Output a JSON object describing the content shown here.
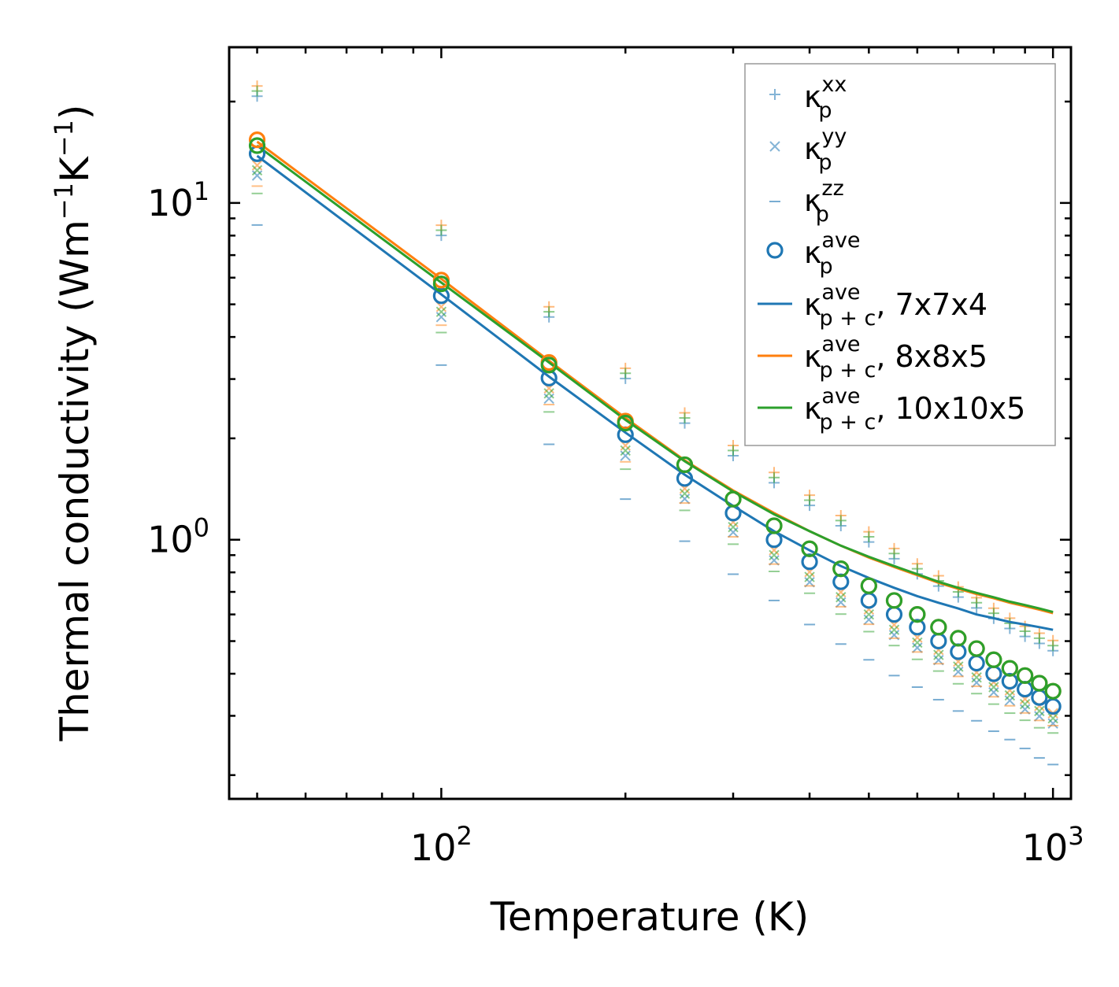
{
  "chart_data": {
    "type": "scatter",
    "xscale": "log",
    "yscale": "log",
    "xlim": [
      45,
      1070
    ],
    "ylim": [
      0.17,
      29
    ],
    "xlabel": "Temperature (K)",
    "ylabel_text": "Thermal conductivity (Wm",
    "ylabel_exp1": "−1",
    "ylabel_mid": "K",
    "ylabel_exp2": "−1",
    "ylabel_close": ")",
    "x_ticks": [
      {
        "value": 100,
        "base": "10",
        "exp": "2"
      },
      {
        "value": 1000,
        "base": "10",
        "exp": "3"
      }
    ],
    "y_ticks": [
      {
        "value": 1,
        "base": "10",
        "exp": "0"
      },
      {
        "value": 10,
        "base": "10",
        "exp": "1"
      }
    ],
    "x": [
      50,
      100,
      150,
      200,
      250,
      300,
      350,
      400,
      450,
      500,
      550,
      600,
      650,
      700,
      750,
      800,
      850,
      900,
      950,
      1000
    ],
    "colors": {
      "blue": "#1f77b4",
      "orange": "#ff7f0e",
      "green": "#2ca02c"
    },
    "legend": {
      "position": "top-right",
      "entries": [
        {
          "symbol": "κ",
          "sub": "p",
          "sup": "xx",
          "suffix": "",
          "marker": "plus"
        },
        {
          "symbol": "κ",
          "sub": "p",
          "sup": "yy",
          "suffix": "",
          "marker": "x"
        },
        {
          "symbol": "κ",
          "sub": "p",
          "sup": "zz",
          "suffix": "",
          "marker": "dash"
        },
        {
          "symbol": "κ",
          "sub": "p",
          "sup": "ave",
          "suffix": "",
          "marker": "circle"
        },
        {
          "symbol": "κ",
          "sub": "p + c",
          "sup": "ave",
          "suffix": ", 7x7x4",
          "marker": "line-blue"
        },
        {
          "symbol": "κ",
          "sub": "p + c",
          "sup": "ave",
          "suffix": ", 8x8x5",
          "marker": "line-orange"
        },
        {
          "symbol": "κ",
          "sub": "p + c",
          "sup": "ave",
          "suffix": ", 10x10x5",
          "marker": "line-green"
        }
      ]
    },
    "series": [
      {
        "name": "κp ave, 7x7x4",
        "color": "blue",
        "marker": "circle",
        "values": [
          14.0,
          5.3,
          3.02,
          2.05,
          1.52,
          1.2,
          1.0,
          0.86,
          0.75,
          0.66,
          0.6,
          0.55,
          0.5,
          0.465,
          0.43,
          0.4,
          0.38,
          0.36,
          0.34,
          0.32
        ],
        "line": [
          13.8,
          5.35,
          3.05,
          2.08,
          1.56,
          1.26,
          1.06,
          0.93,
          0.835,
          0.77,
          0.72,
          0.68,
          0.65,
          0.625,
          0.6,
          0.585,
          0.57,
          0.56,
          0.55,
          0.54
        ]
      },
      {
        "name": "κp ave, 8x8x5",
        "color": "orange",
        "marker": "circle",
        "values": [
          15.4,
          5.9,
          3.36,
          2.25,
          1.67,
          1.32,
          1.1,
          0.94,
          0.82,
          0.73,
          0.66,
          0.6,
          0.55,
          0.51,
          0.475,
          0.44,
          0.415,
          0.395,
          0.375,
          0.355
        ],
        "line": [
          15.2,
          5.95,
          3.4,
          2.3,
          1.72,
          1.4,
          1.2,
          1.06,
          0.96,
          0.885,
          0.83,
          0.785,
          0.745,
          0.715,
          0.69,
          0.67,
          0.65,
          0.635,
          0.62,
          0.605
        ]
      },
      {
        "name": "κp ave, 10x10x5",
        "color": "green",
        "marker": "circle",
        "values": [
          14.8,
          5.75,
          3.3,
          2.22,
          1.67,
          1.32,
          1.1,
          0.94,
          0.82,
          0.73,
          0.66,
          0.6,
          0.55,
          0.51,
          0.475,
          0.44,
          0.415,
          0.395,
          0.375,
          0.355
        ],
        "line": [
          14.8,
          5.8,
          3.36,
          2.27,
          1.71,
          1.39,
          1.19,
          1.06,
          0.96,
          0.89,
          0.835,
          0.79,
          0.75,
          0.72,
          0.695,
          0.675,
          0.655,
          0.64,
          0.625,
          0.61
        ]
      },
      {
        "name": "κp xx",
        "marker": "plus",
        "values": [
          21.5,
          8.3,
          4.75,
          3.12,
          2.3,
          1.84,
          1.53,
          1.31,
          1.14,
          1.02,
          0.91,
          0.82,
          0.755,
          0.7,
          0.65,
          0.605,
          0.565,
          0.535,
          0.51,
          0.485
        ]
      },
      {
        "name": "κp yy",
        "marker": "x",
        "values": [
          12.5,
          4.75,
          2.72,
          1.84,
          1.37,
          1.09,
          0.9,
          0.775,
          0.675,
          0.6,
          0.54,
          0.495,
          0.455,
          0.42,
          0.39,
          0.365,
          0.345,
          0.325,
          0.31,
          0.295
        ]
      },
      {
        "name": "κp zz",
        "marker": "dash",
        "values": [
          11.0,
          4.25,
          2.47,
          1.67,
          1.26,
          1.0,
          0.83,
          0.715,
          0.62,
          0.55,
          0.5,
          0.455,
          0.42,
          0.385,
          0.36,
          0.335,
          0.315,
          0.3,
          0.285,
          0.275
        ],
        "values_blue": [
          8.6,
          3.3,
          1.92,
          1.32,
          0.99,
          0.79,
          0.66,
          0.56,
          0.49,
          0.44,
          0.395,
          0.365,
          0.335,
          0.31,
          0.29,
          0.27,
          0.255,
          0.24,
          0.225,
          0.215
        ]
      }
    ]
  }
}
